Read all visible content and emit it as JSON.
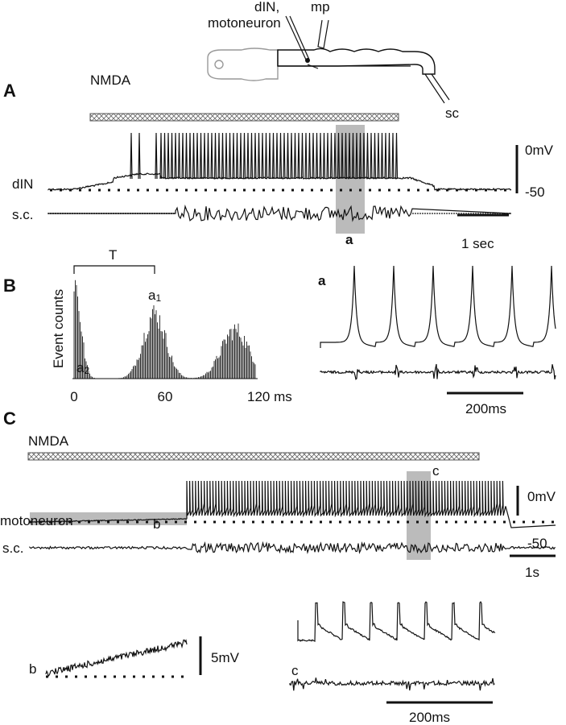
{
  "schematic": {
    "labels": [
      "dIN,",
      "motoneuron",
      "mp",
      "sc"
    ]
  },
  "panel_a": {
    "letter": "A",
    "drug": "NMDA",
    "trace_labels": [
      "dIN",
      "s.c."
    ],
    "scale_v": [
      "0mV",
      "-50"
    ],
    "scale_t": "1 sec",
    "window": "a"
  },
  "panel_b": {
    "letter": "B",
    "ylabel": "Event counts",
    "period": "T",
    "peaks": [
      {
        "main": "a",
        "sub": "1"
      },
      {
        "main": "a",
        "sub": "2"
      }
    ],
    "xticks": [
      "0",
      "60",
      "120 ms"
    ],
    "inset_label": "a",
    "inset_scale": "200ms"
  },
  "panel_c": {
    "letter": "C",
    "drug": "NMDA",
    "trace_labels": [
      "motoneuron",
      "s.c."
    ],
    "window_b": "b",
    "window_c": "c",
    "scale_v": [
      "0mV",
      "-50"
    ],
    "scale_t": "1s",
    "inset_b": {
      "label": "b",
      "scale": "5mV"
    },
    "inset_c": {
      "label": "c",
      "scale": "200ms"
    }
  }
}
